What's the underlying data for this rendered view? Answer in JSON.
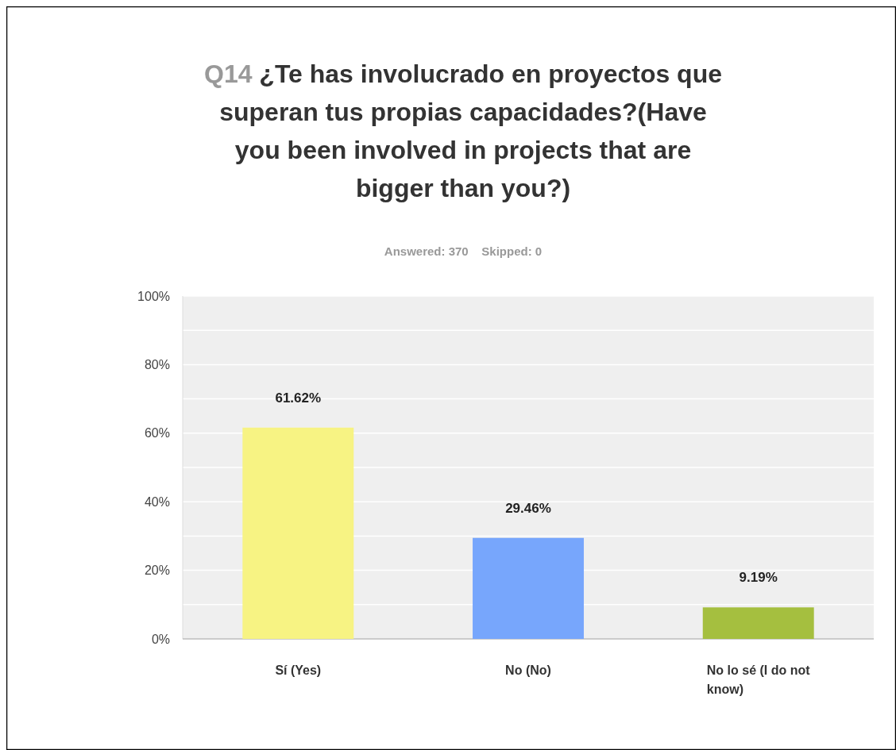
{
  "chart_data": {
    "type": "bar",
    "title": "Q14 ¿Te has involucrado en proyectos que superan tus propias capacidades?(Have you been involved in projects that are bigger than you?)",
    "subtitle": "Answered: 370    Skipped: 0",
    "categories": [
      "Sí (Yes)",
      "No (No)",
      "No lo sé (I do not know)"
    ],
    "values": [
      61.62,
      29.46,
      9.19
    ],
    "colors": [
      "#f7f383",
      "#77a6fc",
      "#a5bf3f"
    ],
    "value_labels": [
      "61.62%",
      "29.46%",
      "9.19%"
    ],
    "ylim": [
      0,
      100
    ],
    "yticks": [
      {
        "value": 0,
        "label": "0%"
      },
      {
        "value": 10,
        "label": null
      },
      {
        "value": 20,
        "label": "20%"
      },
      {
        "value": 30,
        "label": null
      },
      {
        "value": 40,
        "label": "40%"
      },
      {
        "value": 50,
        "label": null
      },
      {
        "value": 60,
        "label": "60%"
      },
      {
        "value": 70,
        "label": null
      },
      {
        "value": 80,
        "label": "80%"
      },
      {
        "value": 90,
        "label": null
      },
      {
        "value": 100,
        "label": "100%"
      }
    ],
    "grid": "y"
  }
}
